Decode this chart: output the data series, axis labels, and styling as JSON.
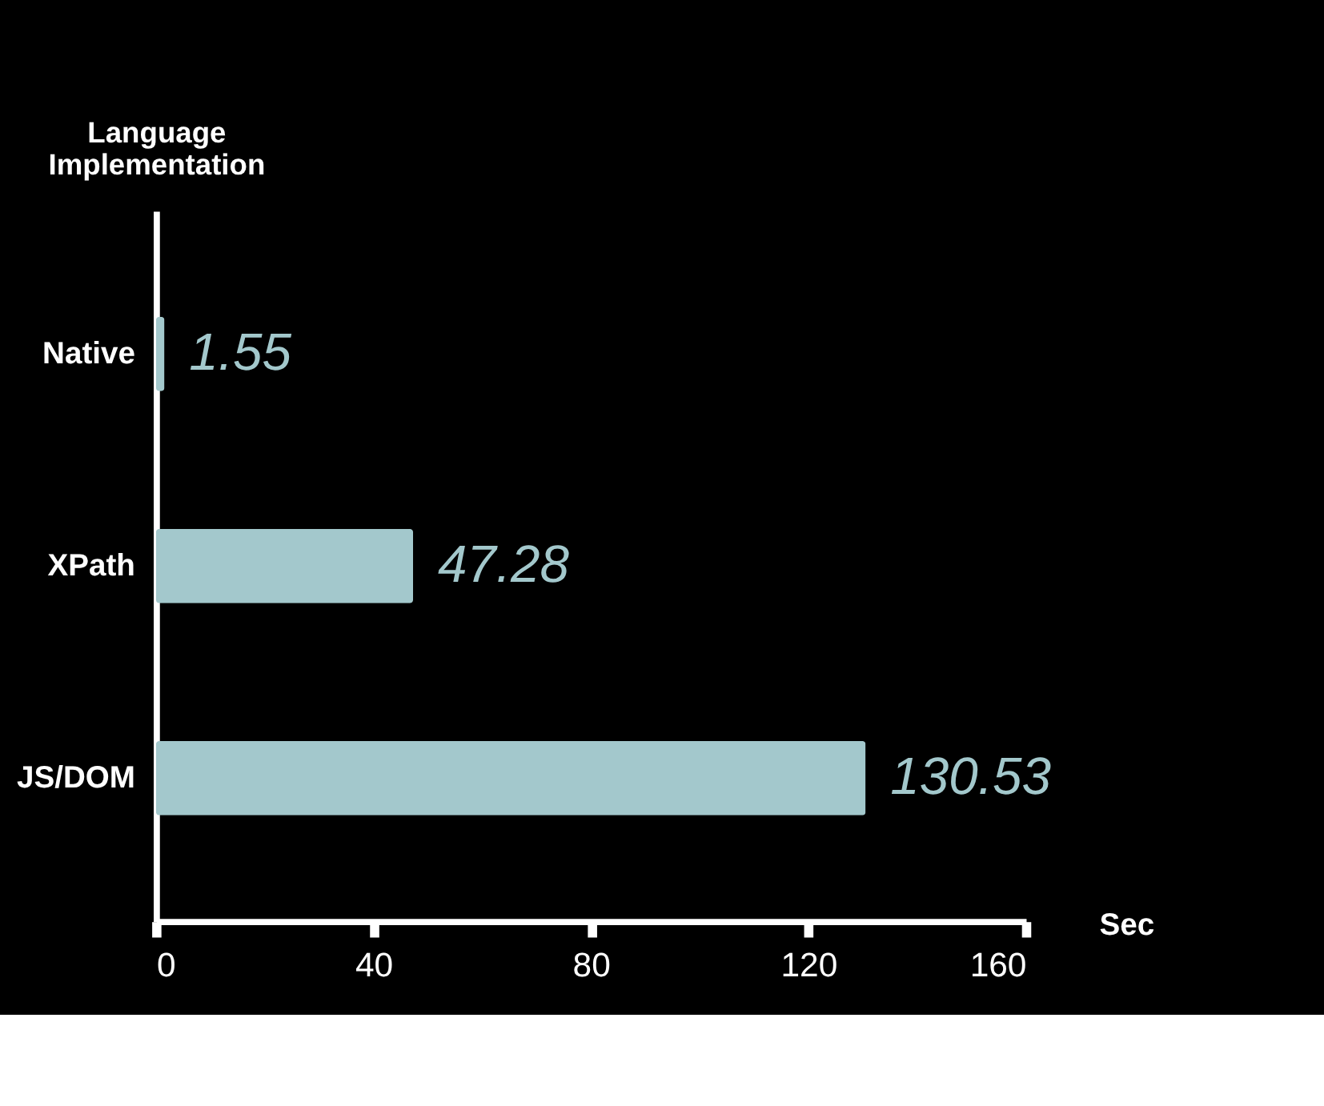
{
  "chart_data": {
    "type": "bar",
    "orientation": "horizontal",
    "categories": [
      "Native",
      "XPath",
      "JS/DOM"
    ],
    "values": [
      1.55,
      47.28,
      130.53
    ],
    "color": "#a3c8cc",
    "xlabel": "Sec",
    "ylabel": "Language Implementation",
    "xlim": [
      0,
      160
    ],
    "xticks": [
      0,
      40,
      80,
      120,
      160
    ],
    "data_labels": true,
    "grid": false
  }
}
